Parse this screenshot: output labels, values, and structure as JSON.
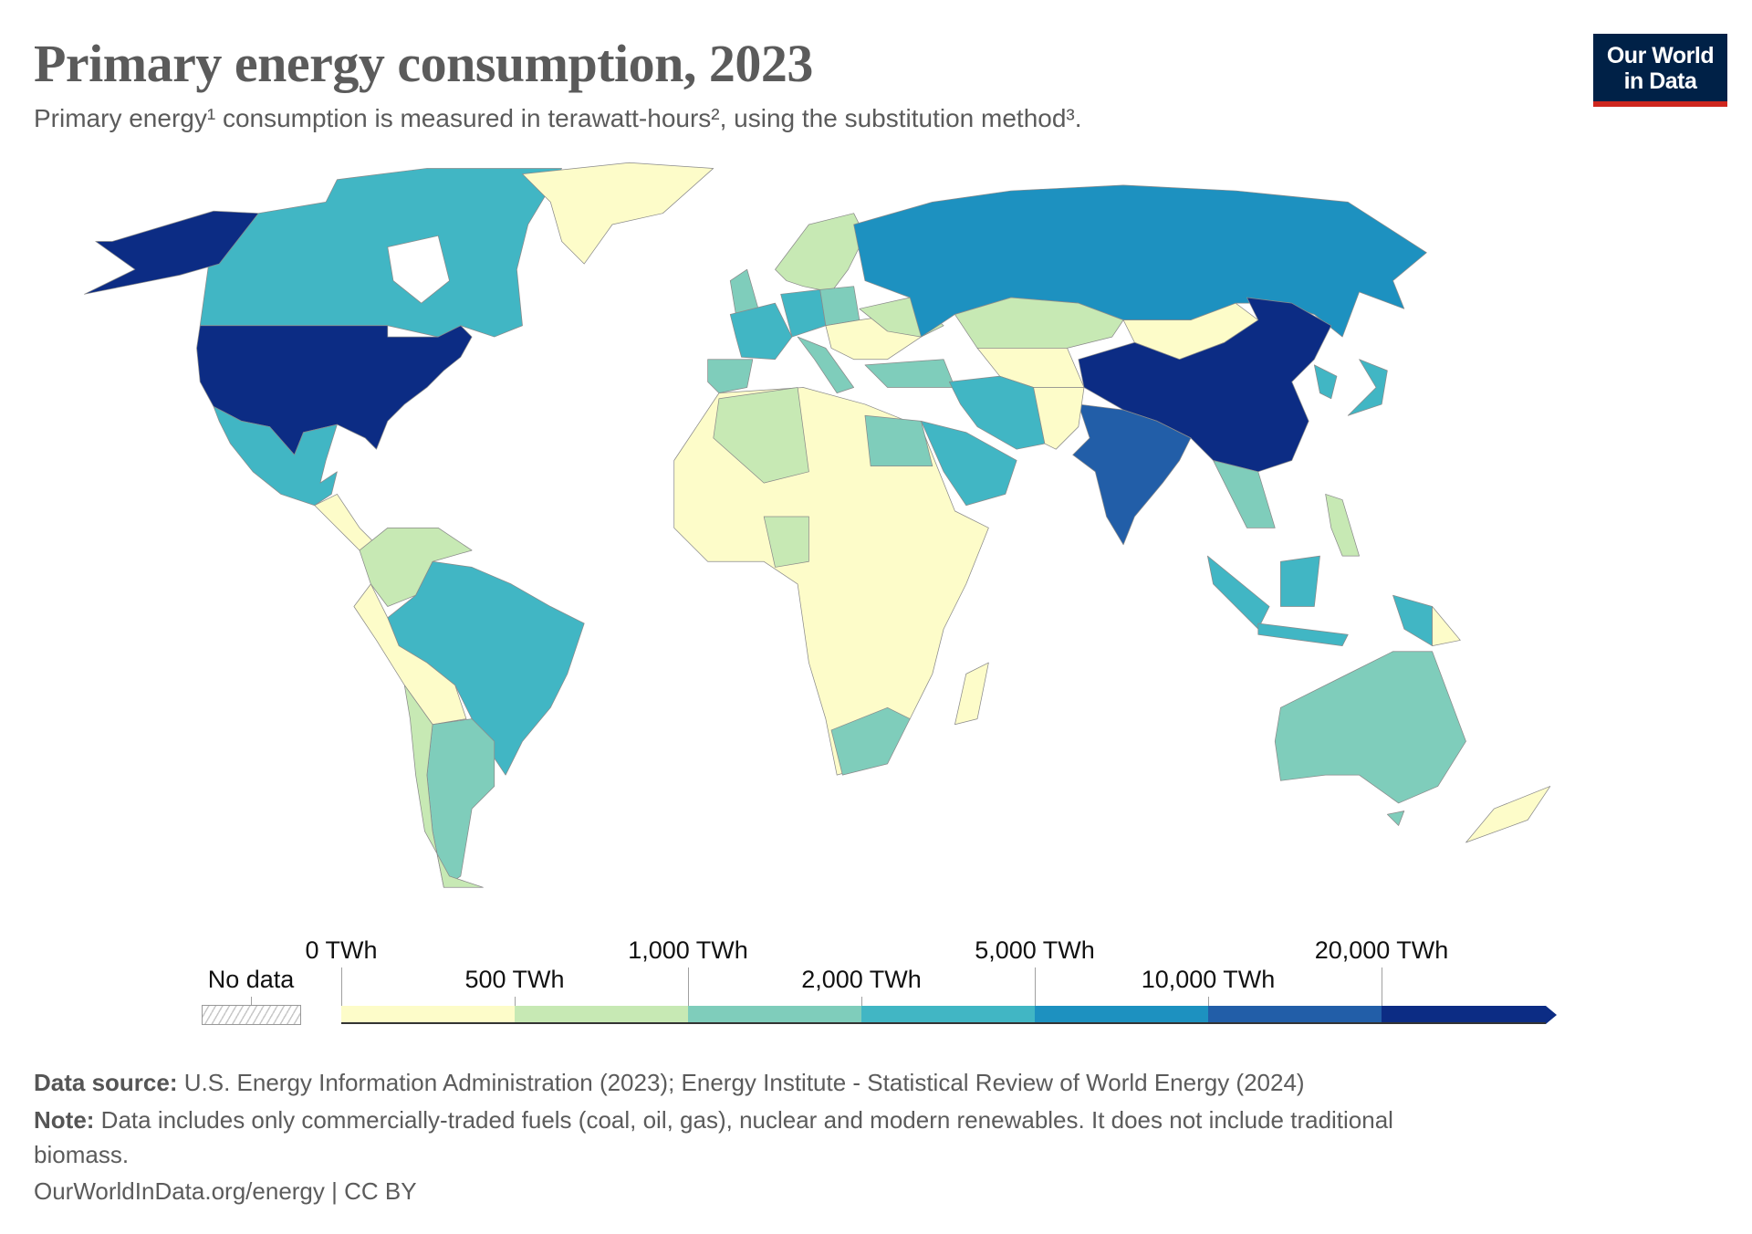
{
  "header": {
    "title": "Primary energy consumption, 2023",
    "subtitle": "Primary energy¹ consumption is measured in terawatt-hours², using the substitution method³.",
    "logo_line1": "Our World",
    "logo_line2": "in Data"
  },
  "chart_data": {
    "type": "choropleth-map",
    "title": "Primary energy consumption, 2023",
    "unit": "TWh",
    "legend": {
      "no_data_label": "No data",
      "tick_labels": [
        "0 TWh",
        "500 TWh",
        "1,000 TWh",
        "2,000 TWh",
        "5,000 TWh",
        "10,000 TWh",
        "20,000 TWh"
      ],
      "bins": [
        {
          "min": 0,
          "max": 500,
          "color": "#fdfcc9"
        },
        {
          "min": 500,
          "max": 1000,
          "color": "#c7e9b4"
        },
        {
          "min": 1000,
          "max": 2000,
          "color": "#7fcdbb"
        },
        {
          "min": 2000,
          "max": 5000,
          "color": "#41b6c4"
        },
        {
          "min": 5000,
          "max": 10000,
          "color": "#1d91c0"
        },
        {
          "min": 10000,
          "max": 20000,
          "color": "#225ea8"
        },
        {
          "min": 20000,
          "max": null,
          "color": "#0c2c84"
        }
      ]
    },
    "regions": [
      {
        "name": "United States",
        "bin": "20,000+ TWh"
      },
      {
        "name": "China",
        "bin": "20,000+ TWh"
      },
      {
        "name": "India",
        "bin": "10,000–20,000 TWh"
      },
      {
        "name": "Russia",
        "bin": "5,000–10,000 TWh"
      },
      {
        "name": "Canada",
        "bin": "2,000–5,000 TWh"
      },
      {
        "name": "Brazil",
        "bin": "2,000–5,000 TWh"
      },
      {
        "name": "Mexico",
        "bin": "2,000–5,000 TWh"
      },
      {
        "name": "Germany",
        "bin": "2,000–5,000 TWh"
      },
      {
        "name": "France",
        "bin": "2,000–5,000 TWh"
      },
      {
        "name": "Iran",
        "bin": "2,000–5,000 TWh"
      },
      {
        "name": "Saudi Arabia",
        "bin": "2,000–5,000 TWh"
      },
      {
        "name": "Japan",
        "bin": "2,000–5,000 TWh"
      },
      {
        "name": "South Korea",
        "bin": "2,000–5,000 TWh"
      },
      {
        "name": "Indonesia",
        "bin": "2,000–5,000 TWh"
      },
      {
        "name": "Australia",
        "bin": "1,000–2,000 TWh"
      },
      {
        "name": "South Africa",
        "bin": "1,000–2,000 TWh"
      },
      {
        "name": "Egypt",
        "bin": "1,000–2,000 TWh"
      },
      {
        "name": "Argentina",
        "bin": "1,000–2,000 TWh"
      },
      {
        "name": "Spain",
        "bin": "1,000–2,000 TWh"
      },
      {
        "name": "United Kingdom",
        "bin": "1,000–2,000 TWh"
      },
      {
        "name": "Italy",
        "bin": "1,000–2,000 TWh"
      },
      {
        "name": "Poland",
        "bin": "1,000–2,000 TWh"
      },
      {
        "name": "Turkey",
        "bin": "1,000–2,000 TWh"
      },
      {
        "name": "Thailand",
        "bin": "1,000–2,000 TWh"
      },
      {
        "name": "Kazakhstan",
        "bin": "500–1,000 TWh"
      },
      {
        "name": "Ukraine",
        "bin": "500–1,000 TWh"
      },
      {
        "name": "Algeria",
        "bin": "500–1,000 TWh"
      },
      {
        "name": "Nigeria",
        "bin": "500–1,000 TWh"
      },
      {
        "name": "Colombia/Venezuela",
        "bin": "500–1,000 TWh"
      },
      {
        "name": "Chile",
        "bin": "500–1,000 TWh"
      },
      {
        "name": "Nordic countries",
        "bin": "500–1,000 TWh"
      },
      {
        "name": "Greenland",
        "bin": "0–500 TWh"
      },
      {
        "name": "Mongolia",
        "bin": "0–500 TWh"
      },
      {
        "name": "Most of Africa",
        "bin": "0–500 TWh"
      },
      {
        "name": "New Zealand",
        "bin": "0–500 TWh"
      }
    ]
  },
  "footer": {
    "source_label": "Data source:",
    "source_text": "U.S. Energy Information Administration (2023); Energy Institute - Statistical Review of World Energy (2024)",
    "note_label": "Note:",
    "note_text": "Data includes only commercially-traded fuels (coal, oil, gas), nuclear and modern renewables. It does not include traditional",
    "note_text2": "biomass.",
    "url": "OurWorldInData.org/energy | CC BY"
  }
}
